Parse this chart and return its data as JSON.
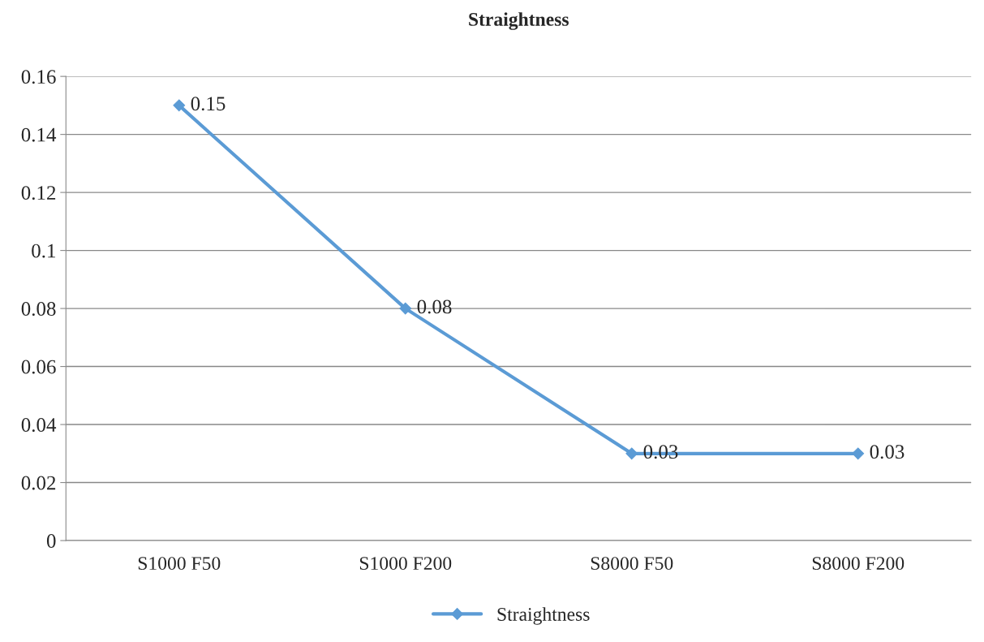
{
  "chart_data": {
    "type": "line",
    "title": "Straightness",
    "categories": [
      "S1000 F50",
      "S1000 F200",
      "S8000 F50",
      "S8000 F200"
    ],
    "series": [
      {
        "name": "Straightness",
        "color": "#5b9bd5",
        "values": [
          0.15,
          0.08,
          0.03,
          0.03
        ]
      }
    ],
    "ylim": [
      0,
      0.16
    ],
    "yticks": [
      0,
      0.02,
      0.04,
      0.06,
      0.08,
      0.1,
      0.12,
      0.14,
      0.16
    ],
    "grid": "y",
    "legend": "bottom",
    "marker": "diamond",
    "line_style": "solid",
    "data_labels": true
  }
}
